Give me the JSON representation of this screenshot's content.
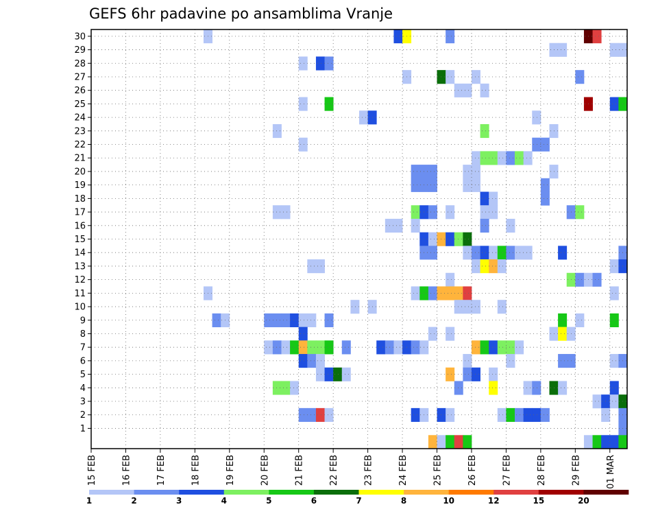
{
  "chart_data": {
    "type": "heatmap",
    "title": "GEFS 6hr padavine po ansamblima Vranje",
    "x_tick_labels": [
      "15 FEB",
      "16 FEB",
      "17 FEB",
      "18 FEB",
      "19 FEB",
      "20 FEB",
      "21 FEB",
      "22 FEB",
      "23 FEB",
      "24 FEB",
      "25 FEB",
      "26 FEB",
      "27 FEB",
      "28 FEB",
      "29 FEB",
      "01 MAR"
    ],
    "x_unit": "6-hour step",
    "x_range": [
      0,
      61
    ],
    "y_tick_labels": [
      "1",
      "2",
      "3",
      "4",
      "5",
      "6",
      "7",
      "8",
      "9",
      "10",
      "11",
      "12",
      "13",
      "14",
      "15",
      "16",
      "17",
      "18",
      "19",
      "20",
      "21",
      "22",
      "23",
      "24",
      "25",
      "26",
      "27",
      "28",
      "29",
      "30"
    ],
    "y_range": [
      0,
      30
    ],
    "grid": true,
    "legend": {
      "placement": "bottom",
      "labels": [
        "1",
        "2",
        "3",
        "4",
        "5",
        "6",
        "7",
        "8",
        "10",
        "12",
        "15",
        "20"
      ],
      "colors": [
        "#b4c6f7",
        "#6b8ef0",
        "#1f4fe0",
        "#7df060",
        "#16c816",
        "#0a6e0a",
        "#ffff00",
        "#ffb43c",
        "#ff7a00",
        "#e04040",
        "#a00000",
        "#600000"
      ]
    },
    "cells": [
      {
        "m": 30,
        "t": 13,
        "v": 1
      },
      {
        "m": 30,
        "t": 35,
        "v": 3
      },
      {
        "m": 30,
        "t": 36,
        "v": 7
      },
      {
        "m": 30,
        "t": 41,
        "v": 2
      },
      {
        "m": 30,
        "t": 57,
        "v": 20
      },
      {
        "m": 30,
        "t": 58,
        "v": 12
      },
      {
        "m": 29,
        "t": 53,
        "v": 1
      },
      {
        "m": 29,
        "t": 54,
        "v": 1
      },
      {
        "m": 29,
        "t": 60,
        "v": 1
      },
      {
        "m": 29,
        "t": 61,
        "v": 1
      },
      {
        "m": 28,
        "t": 24,
        "v": 1
      },
      {
        "m": 28,
        "t": 26,
        "v": 3
      },
      {
        "m": 28,
        "t": 27,
        "v": 2
      },
      {
        "m": 27,
        "t": 36,
        "v": 1
      },
      {
        "m": 27,
        "t": 40,
        "v": 6
      },
      {
        "m": 27,
        "t": 41,
        "v": 1
      },
      {
        "m": 27,
        "t": 44,
        "v": 1
      },
      {
        "m": 27,
        "t": 56,
        "v": 2
      },
      {
        "m": 26,
        "t": 42,
        "v": 1
      },
      {
        "m": 26,
        "t": 43,
        "v": 1
      },
      {
        "m": 26,
        "t": 45,
        "v": 1
      },
      {
        "m": 25,
        "t": 24,
        "v": 1
      },
      {
        "m": 25,
        "t": 27,
        "v": 5
      },
      {
        "m": 25,
        "t": 57,
        "v": 15
      },
      {
        "m": 25,
        "t": 60,
        "v": 3
      },
      {
        "m": 25,
        "t": 61,
        "v": 5
      },
      {
        "m": 24,
        "t": 31,
        "v": 1
      },
      {
        "m": 24,
        "t": 32,
        "v": 3
      },
      {
        "m": 24,
        "t": 51,
        "v": 1
      },
      {
        "m": 23,
        "t": 21,
        "v": 1
      },
      {
        "m": 23,
        "t": 45,
        "v": 4
      },
      {
        "m": 23,
        "t": 53,
        "v": 1
      },
      {
        "m": 22,
        "t": 24,
        "v": 1
      },
      {
        "m": 22,
        "t": 51,
        "v": 2
      },
      {
        "m": 22,
        "t": 52,
        "v": 2
      },
      {
        "m": 21,
        "t": 44,
        "v": 1
      },
      {
        "m": 21,
        "t": 45,
        "v": 4
      },
      {
        "m": 21,
        "t": 46,
        "v": 4
      },
      {
        "m": 21,
        "t": 47,
        "v": 1
      },
      {
        "m": 21,
        "t": 48,
        "v": 2
      },
      {
        "m": 21,
        "t": 49,
        "v": 4
      },
      {
        "m": 21,
        "t": 50,
        "v": 1
      },
      {
        "m": 20,
        "t": 37,
        "v": 2
      },
      {
        "m": 20,
        "t": 38,
        "v": 2
      },
      {
        "m": 20,
        "t": 39,
        "v": 2
      },
      {
        "m": 20,
        "t": 43,
        "v": 1
      },
      {
        "m": 20,
        "t": 44,
        "v": 1
      },
      {
        "m": 20,
        "t": 53,
        "v": 1
      },
      {
        "m": 19,
        "t": 37,
        "v": 2
      },
      {
        "m": 19,
        "t": 38,
        "v": 2
      },
      {
        "m": 19,
        "t": 39,
        "v": 2
      },
      {
        "m": 19,
        "t": 43,
        "v": 1
      },
      {
        "m": 19,
        "t": 44,
        "v": 1
      },
      {
        "m": 19,
        "t": 52,
        "v": 2
      },
      {
        "m": 18,
        "t": 45,
        "v": 3
      },
      {
        "m": 18,
        "t": 46,
        "v": 1
      },
      {
        "m": 18,
        "t": 52,
        "v": 2
      },
      {
        "m": 17,
        "t": 21,
        "v": 1
      },
      {
        "m": 17,
        "t": 22,
        "v": 1
      },
      {
        "m": 17,
        "t": 37,
        "v": 4
      },
      {
        "m": 17,
        "t": 38,
        "v": 3
      },
      {
        "m": 17,
        "t": 39,
        "v": 2
      },
      {
        "m": 17,
        "t": 41,
        "v": 1
      },
      {
        "m": 17,
        "t": 45,
        "v": 1
      },
      {
        "m": 17,
        "t": 46,
        "v": 1
      },
      {
        "m": 17,
        "t": 55,
        "v": 2
      },
      {
        "m": 17,
        "t": 56,
        "v": 4
      },
      {
        "m": 16,
        "t": 34,
        "v": 1
      },
      {
        "m": 16,
        "t": 35,
        "v": 1
      },
      {
        "m": 16,
        "t": 37,
        "v": 1
      },
      {
        "m": 16,
        "t": 45,
        "v": 2
      },
      {
        "m": 16,
        "t": 48,
        "v": 1
      },
      {
        "m": 15,
        "t": 38,
        "v": 3
      },
      {
        "m": 15,
        "t": 39,
        "v": 1
      },
      {
        "m": 15,
        "t": 40,
        "v": 8
      },
      {
        "m": 15,
        "t": 41,
        "v": 3
      },
      {
        "m": 15,
        "t": 42,
        "v": 4
      },
      {
        "m": 15,
        "t": 43,
        "v": 6
      },
      {
        "m": 14,
        "t": 38,
        "v": 2
      },
      {
        "m": 14,
        "t": 39,
        "v": 2
      },
      {
        "m": 14,
        "t": 43,
        "v": 1
      },
      {
        "m": 14,
        "t": 44,
        "v": 2
      },
      {
        "m": 14,
        "t": 45,
        "v": 3
      },
      {
        "m": 14,
        "t": 46,
        "v": 1
      },
      {
        "m": 14,
        "t": 47,
        "v": 5
      },
      {
        "m": 14,
        "t": 48,
        "v": 2
      },
      {
        "m": 14,
        "t": 49,
        "v": 1
      },
      {
        "m": 14,
        "t": 50,
        "v": 1
      },
      {
        "m": 14,
        "t": 54,
        "v": 3
      },
      {
        "m": 14,
        "t": 61,
        "v": 2
      },
      {
        "m": 13,
        "t": 25,
        "v": 1
      },
      {
        "m": 13,
        "t": 26,
        "v": 1
      },
      {
        "m": 13,
        "t": 44,
        "v": 1
      },
      {
        "m": 13,
        "t": 45,
        "v": 7
      },
      {
        "m": 13,
        "t": 46,
        "v": 8
      },
      {
        "m": 13,
        "t": 47,
        "v": 1
      },
      {
        "m": 13,
        "t": 60,
        "v": 1
      },
      {
        "m": 13,
        "t": 61,
        "v": 3
      },
      {
        "m": 12,
        "t": 41,
        "v": 1
      },
      {
        "m": 12,
        "t": 55,
        "v": 4
      },
      {
        "m": 12,
        "t": 56,
        "v": 2
      },
      {
        "m": 12,
        "t": 57,
        "v": 1
      },
      {
        "m": 12,
        "t": 58,
        "v": 2
      },
      {
        "m": 11,
        "t": 13,
        "v": 1
      },
      {
        "m": 11,
        "t": 37,
        "v": 1
      },
      {
        "m": 11,
        "t": 38,
        "v": 5
      },
      {
        "m": 11,
        "t": 39,
        "v": 2
      },
      {
        "m": 11,
        "t": 40,
        "v": 8
      },
      {
        "m": 11,
        "t": 41,
        "v": 8
      },
      {
        "m": 11,
        "t": 42,
        "v": 8
      },
      {
        "m": 11,
        "t": 43,
        "v": 12
      },
      {
        "m": 11,
        "t": 60,
        "v": 1
      },
      {
        "m": 10,
        "t": 30,
        "v": 1
      },
      {
        "m": 10,
        "t": 32,
        "v": 1
      },
      {
        "m": 10,
        "t": 42,
        "v": 1
      },
      {
        "m": 10,
        "t": 43,
        "v": 1
      },
      {
        "m": 10,
        "t": 44,
        "v": 1
      },
      {
        "m": 10,
        "t": 47,
        "v": 1
      },
      {
        "m": 9,
        "t": 14,
        "v": 2
      },
      {
        "m": 9,
        "t": 15,
        "v": 1
      },
      {
        "m": 9,
        "t": 20,
        "v": 2
      },
      {
        "m": 9,
        "t": 21,
        "v": 2
      },
      {
        "m": 9,
        "t": 22,
        "v": 2
      },
      {
        "m": 9,
        "t": 23,
        "v": 3
      },
      {
        "m": 9,
        "t": 24,
        "v": 1
      },
      {
        "m": 9,
        "t": 25,
        "v": 1
      },
      {
        "m": 9,
        "t": 27,
        "v": 2
      },
      {
        "m": 9,
        "t": 54,
        "v": 5
      },
      {
        "m": 9,
        "t": 56,
        "v": 1
      },
      {
        "m": 9,
        "t": 60,
        "v": 5
      },
      {
        "m": 8,
        "t": 24,
        "v": 3
      },
      {
        "m": 8,
        "t": 39,
        "v": 1
      },
      {
        "m": 8,
        "t": 41,
        "v": 1
      },
      {
        "m": 8,
        "t": 53,
        "v": 1
      },
      {
        "m": 8,
        "t": 54,
        "v": 7
      },
      {
        "m": 8,
        "t": 55,
        "v": 1
      },
      {
        "m": 7,
        "t": 20,
        "v": 1
      },
      {
        "m": 7,
        "t": 21,
        "v": 2
      },
      {
        "m": 7,
        "t": 22,
        "v": 1
      },
      {
        "m": 7,
        "t": 23,
        "v": 5
      },
      {
        "m": 7,
        "t": 24,
        "v": 8
      },
      {
        "m": 7,
        "t": 25,
        "v": 4
      },
      {
        "m": 7,
        "t": 26,
        "v": 4
      },
      {
        "m": 7,
        "t": 27,
        "v": 5
      },
      {
        "m": 7,
        "t": 29,
        "v": 2
      },
      {
        "m": 7,
        "t": 33,
        "v": 3
      },
      {
        "m": 7,
        "t": 34,
        "v": 2
      },
      {
        "m": 7,
        "t": 35,
        "v": 1
      },
      {
        "m": 7,
        "t": 36,
        "v": 3
      },
      {
        "m": 7,
        "t": 37,
        "v": 2
      },
      {
        "m": 7,
        "t": 38,
        "v": 1
      },
      {
        "m": 7,
        "t": 44,
        "v": 8
      },
      {
        "m": 7,
        "t": 45,
        "v": 5
      },
      {
        "m": 7,
        "t": 46,
        "v": 3
      },
      {
        "m": 7,
        "t": 47,
        "v": 4
      },
      {
        "m": 7,
        "t": 48,
        "v": 4
      },
      {
        "m": 7,
        "t": 49,
        "v": 1
      },
      {
        "m": 6,
        "t": 24,
        "v": 3
      },
      {
        "m": 6,
        "t": 25,
        "v": 2
      },
      {
        "m": 6,
        "t": 26,
        "v": 1
      },
      {
        "m": 6,
        "t": 43,
        "v": 1
      },
      {
        "m": 6,
        "t": 48,
        "v": 1
      },
      {
        "m": 6,
        "t": 54,
        "v": 2
      },
      {
        "m": 6,
        "t": 55,
        "v": 2
      },
      {
        "m": 6,
        "t": 60,
        "v": 1
      },
      {
        "m": 6,
        "t": 61,
        "v": 2
      },
      {
        "m": 5,
        "t": 26,
        "v": 1
      },
      {
        "m": 5,
        "t": 27,
        "v": 3
      },
      {
        "m": 5,
        "t": 28,
        "v": 6
      },
      {
        "m": 5,
        "t": 29,
        "v": 1
      },
      {
        "m": 5,
        "t": 41,
        "v": 8
      },
      {
        "m": 5,
        "t": 43,
        "v": 2
      },
      {
        "m": 5,
        "t": 44,
        "v": 3
      },
      {
        "m": 5,
        "t": 46,
        "v": 1
      },
      {
        "m": 4,
        "t": 21,
        "v": 4
      },
      {
        "m": 4,
        "t": 22,
        "v": 4
      },
      {
        "m": 4,
        "t": 23,
        "v": 1
      },
      {
        "m": 4,
        "t": 42,
        "v": 2
      },
      {
        "m": 4,
        "t": 46,
        "v": 7
      },
      {
        "m": 4,
        "t": 50,
        "v": 1
      },
      {
        "m": 4,
        "t": 51,
        "v": 2
      },
      {
        "m": 4,
        "t": 53,
        "v": 6
      },
      {
        "m": 4,
        "t": 54,
        "v": 1
      },
      {
        "m": 4,
        "t": 60,
        "v": 3
      },
      {
        "m": 3,
        "t": 58,
        "v": 1
      },
      {
        "m": 3,
        "t": 59,
        "v": 3
      },
      {
        "m": 3,
        "t": 60,
        "v": 1
      },
      {
        "m": 3,
        "t": 61,
        "v": 6
      },
      {
        "m": 2,
        "t": 24,
        "v": 2
      },
      {
        "m": 2,
        "t": 25,
        "v": 2
      },
      {
        "m": 2,
        "t": 26,
        "v": 12
      },
      {
        "m": 2,
        "t": 27,
        "v": 1
      },
      {
        "m": 2,
        "t": 37,
        "v": 3
      },
      {
        "m": 2,
        "t": 38,
        "v": 1
      },
      {
        "m": 2,
        "t": 40,
        "v": 3
      },
      {
        "m": 2,
        "t": 41,
        "v": 1
      },
      {
        "m": 2,
        "t": 47,
        "v": 1
      },
      {
        "m": 2,
        "t": 48,
        "v": 5
      },
      {
        "m": 2,
        "t": 49,
        "v": 2
      },
      {
        "m": 2,
        "t": 50,
        "v": 3
      },
      {
        "m": 2,
        "t": 51,
        "v": 3
      },
      {
        "m": 2,
        "t": 52,
        "v": 2
      },
      {
        "m": 2,
        "t": 59,
        "v": 1
      },
      {
        "m": 2,
        "t": 61,
        "v": 2
      },
      {
        "m": 1,
        "t": 61,
        "v": 2
      },
      {
        "m": 0,
        "t": 39,
        "v": 8
      },
      {
        "m": 0,
        "t": 40,
        "v": 1
      },
      {
        "m": 0,
        "t": 41,
        "v": 5
      },
      {
        "m": 0,
        "t": 42,
        "v": 12
      },
      {
        "m": 0,
        "t": 43,
        "v": 5
      },
      {
        "m": 0,
        "t": 57,
        "v": 1
      },
      {
        "m": 0,
        "t": 58,
        "v": 5
      },
      {
        "m": 0,
        "t": 59,
        "v": 3
      },
      {
        "m": 0,
        "t": 60,
        "v": 3
      },
      {
        "m": 0,
        "t": 61,
        "v": 5
      }
    ]
  }
}
